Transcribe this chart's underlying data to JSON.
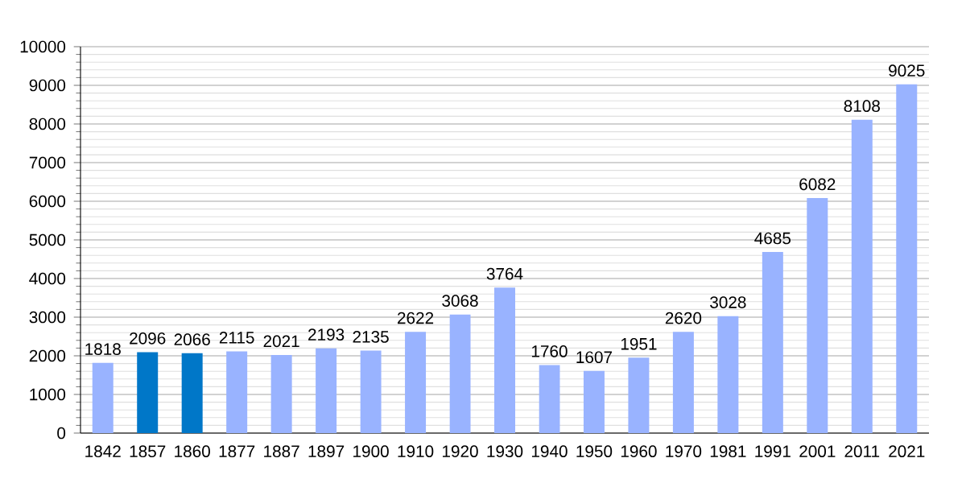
{
  "chart_data": {
    "type": "bar",
    "categories": [
      "1842",
      "1857",
      "1860",
      "1877",
      "1887",
      "1897",
      "1900",
      "1910",
      "1920",
      "1930",
      "1940",
      "1950",
      "1960",
      "1970",
      "1981",
      "1991",
      "2001",
      "2011",
      "2021"
    ],
    "values": [
      1818,
      2096,
      2066,
      2115,
      2021,
      2193,
      2135,
      2622,
      3068,
      3764,
      1760,
      1607,
      1951,
      2620,
      3028,
      4685,
      6082,
      8108,
      9025
    ],
    "colors": [
      "#99b3ff",
      "#0077c8",
      "#0077c8",
      "#99b3ff",
      "#99b3ff",
      "#99b3ff",
      "#99b3ff",
      "#99b3ff",
      "#99b3ff",
      "#99b3ff",
      "#99b3ff",
      "#99b3ff",
      "#99b3ff",
      "#99b3ff",
      "#99b3ff",
      "#99b3ff",
      "#99b3ff",
      "#99b3ff",
      "#99b3ff"
    ],
    "ylim": [
      0,
      10000
    ],
    "yticks": [
      0,
      1000,
      2000,
      3000,
      4000,
      5000,
      6000,
      7000,
      8000,
      9000,
      10000
    ],
    "grid": true,
    "data_labels": true
  }
}
